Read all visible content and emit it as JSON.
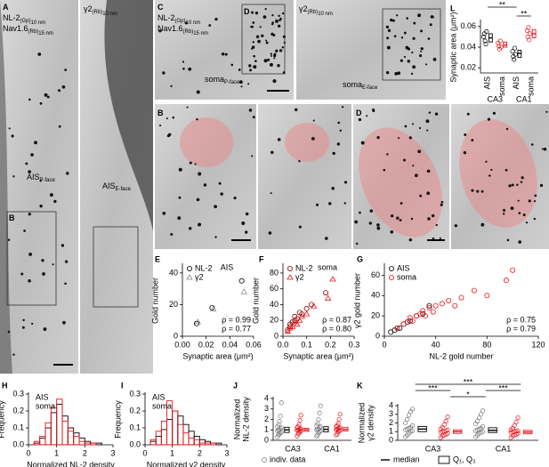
{
  "micrographs": {
    "panel_A": "A",
    "panel_B": "B",
    "panel_C": "C",
    "panel_D": "D",
    "nl2": "NL-2",
    "nl2_sub": "(Gp)",
    "nl2_size": "10 nm",
    "nav": "Nav1.6",
    "nav_sub": "(Rb)",
    "nav_size": "15 nm",
    "g2": "γ2",
    "g2_sub": "(Rb)",
    "g2_size": "10 nm",
    "ais": "AIS",
    "soma": "soma",
    "pface": "P-face",
    "eface": "E-face"
  },
  "legend": {
    "data": "indiv. data",
    "median": "median",
    "quartiles": "Q₁, Q₃"
  },
  "chart_data": [
    {
      "type": "strip",
      "panel": "L",
      "y_label": [
        "Synaptic area (μm²)"
      ],
      "ylim": [
        0.015,
        0.065
      ],
      "yticks": [
        0.02,
        0.04,
        0.06
      ],
      "groups": [
        "CA3",
        "CA1"
      ],
      "sig_labels": [
        "**",
        "**"
      ],
      "series": [
        {
          "name": "AIS",
          "color": "#000000",
          "data": [
            {
              "values": [
                0.05,
                0.053,
                0.046,
                0.043,
                0.055
              ],
              "median": 0.049,
              "q1": 0.045,
              "q3": 0.053
            },
            {
              "values": [
                0.036,
                0.031,
                0.028,
                0.039,
                0.033
              ],
              "median": 0.034,
              "q1": 0.03,
              "q3": 0.037
            }
          ]
        },
        {
          "name": "soma",
          "color": "#e8141b",
          "data": [
            {
              "values": [
                0.044,
                0.041,
                0.038,
                0.046,
                0.04
              ],
              "median": 0.042,
              "q1": 0.04,
              "q3": 0.045
            },
            {
              "values": [
                0.056,
                0.05,
                0.059,
                0.047,
                0.053
              ],
              "median": 0.053,
              "q1": 0.049,
              "q3": 0.057
            }
          ]
        }
      ]
    },
    {
      "type": "scatter",
      "panel": "E",
      "title": "AIS",
      "title_color": "#000000",
      "x_label": "Synaptic area (μm²)",
      "y_label": [
        "Gold number"
      ],
      "xlim": [
        0,
        0.06
      ],
      "xticks": [
        {
          "value": 0,
          "label": "0.00"
        },
        0.02,
        0.04,
        0.06
      ],
      "ylim": [
        0,
        45
      ],
      "yticks": [
        0,
        20,
        40
      ],
      "series": [
        {
          "name": "NL-2",
          "color": "#000000",
          "marker": "circle",
          "x": [
            0.012,
            0.025,
            0.05
          ],
          "values": [
            8,
            18,
            35
          ]
        },
        {
          "name": "γ2",
          "color": "#888888",
          "marker": "triangle",
          "x": [
            0.013,
            0.026,
            0.052
          ],
          "values": [
            9,
            17,
            28
          ]
        }
      ],
      "annotations": [
        {
          "text": "ρ = 0.99",
          "color": "#000000"
        },
        {
          "text": "ρ = 0.77",
          "color": "#888888"
        }
      ]
    },
    {
      "type": "scatter",
      "panel": "F",
      "title": "soma",
      "title_color": "#e8141b",
      "x_label": "Synaptic area (μm²)",
      "y_label": [
        "Gold number"
      ],
      "xlim": [
        0,
        0.3
      ],
      "xticks": [
        {
          "value": 0,
          "label": "0.0"
        },
        0.1,
        0.2,
        0.3
      ],
      "ylim": [
        0,
        90
      ],
      "yticks": [
        0,
        20,
        40,
        60,
        80
      ],
      "series": [
        {
          "name": "NL-2",
          "color": "#8b0000",
          "marker": "circle",
          "x": [
            0.02,
            0.03,
            0.03,
            0.04,
            0.05,
            0.05,
            0.06,
            0.07,
            0.08,
            0.1,
            0.12,
            0.18
          ],
          "values": [
            8,
            12,
            15,
            18,
            20,
            25,
            22,
            30,
            28,
            35,
            40,
            55
          ]
        },
        {
          "name": "γ2",
          "color": "#e8141b",
          "marker": "triangle",
          "x": [
            0.02,
            0.03,
            0.04,
            0.05,
            0.06,
            0.07,
            0.08,
            0.1,
            0.13,
            0.19,
            0.21
          ],
          "values": [
            6,
            10,
            12,
            18,
            15,
            20,
            25,
            28,
            38,
            48,
            72
          ]
        }
      ],
      "annotations": [
        {
          "text": "ρ = 0.87",
          "color": "#8b0000"
        },
        {
          "text": "ρ = 0.80",
          "color": "#e8141b"
        }
      ]
    },
    {
      "type": "scatter",
      "panel": "G",
      "x_label": "NL-2 gold number",
      "y_label": [
        "γ2 gold number"
      ],
      "xlim": [
        0,
        120
      ],
      "xticks": [
        0,
        40,
        80,
        120
      ],
      "ylim": [
        0,
        70
      ],
      "yticks": [
        0,
        20,
        40,
        60
      ],
      "series": [
        {
          "name": "AIS",
          "color": "#000000",
          "marker": "circle",
          "x": [
            5,
            8,
            10,
            12,
            15,
            18,
            20,
            25,
            30,
            35
          ],
          "values": [
            4,
            6,
            8,
            8,
            12,
            14,
            15,
            20,
            22,
            30
          ]
        },
        {
          "name": "soma",
          "color": "#e8141b",
          "marker": "circle",
          "x": [
            10,
            15,
            18,
            20,
            22,
            25,
            28,
            30,
            32,
            35,
            38,
            40,
            45,
            50,
            55,
            60,
            70,
            80,
            95,
            100
          ],
          "values": [
            8,
            12,
            14,
            18,
            15,
            20,
            22,
            25,
            20,
            28,
            24,
            30,
            32,
            35,
            30,
            38,
            45,
            40,
            55,
            65
          ]
        }
      ],
      "annotations": [
        {
          "text": "ρ = 0.75",
          "color": "#000000"
        },
        {
          "text": "ρ = 0.79",
          "color": "#e8141b"
        }
      ]
    },
    {
      "type": "histogram",
      "panel": "H",
      "x_label": "Normalized NL-2 density",
      "y_label": [
        "Frequency"
      ],
      "xlim": [
        0,
        3
      ],
      "xticks": [
        0,
        1,
        2,
        3
      ],
      "ylim": [
        0,
        0.3
      ],
      "yticks": [
        {
          "value": 0,
          "label": "0.0"
        },
        0.1,
        0.2,
        0.3
      ],
      "bins": [
        0,
        0.2,
        0.4,
        0.6,
        0.8,
        1,
        1.2,
        1.4,
        1.6,
        1.8,
        2,
        2.2,
        2.4,
        2.6,
        2.8,
        3
      ],
      "series": [
        {
          "name": "AIS",
          "color": "#000000",
          "values": [
            0,
            0.01,
            0.04,
            0.1,
            0.19,
            0.24,
            0.17,
            0.1,
            0.07,
            0.04,
            0.02,
            0.01,
            0.01,
            0,
            0
          ]
        },
        {
          "name": "soma",
          "color": "#e8141b",
          "values": [
            0,
            0.02,
            0.05,
            0.13,
            0.22,
            0.27,
            0.14,
            0.08,
            0.05,
            0.02,
            0.01,
            0.01,
            0,
            0,
            0
          ]
        }
      ]
    },
    {
      "type": "histogram",
      "panel": "I",
      "x_label": "Normalized γ2 density",
      "y_label": [
        "Frequency"
      ],
      "xlim": [
        0,
        3
      ],
      "xticks": [
        0,
        1,
        2,
        3
      ],
      "ylim": [
        0,
        0.3
      ],
      "yticks": [
        {
          "value": 0,
          "label": "0.0"
        },
        0.1,
        0.2,
        0.3
      ],
      "bins": [
        0,
        0.2,
        0.4,
        0.6,
        0.8,
        1,
        1.2,
        1.4,
        1.6,
        1.8,
        2,
        2.2,
        2.4,
        2.6,
        2.8,
        3
      ],
      "series": [
        {
          "name": "AIS",
          "color": "#000000",
          "values": [
            0,
            0.02,
            0.05,
            0.09,
            0.15,
            0.2,
            0.17,
            0.12,
            0.08,
            0.05,
            0.03,
            0.02,
            0.01,
            0.01,
            0
          ]
        },
        {
          "name": "soma",
          "color": "#e8141b",
          "values": [
            0,
            0.03,
            0.08,
            0.14,
            0.26,
            0.2,
            0.12,
            0.07,
            0.04,
            0.03,
            0.01,
            0.01,
            0.01,
            0,
            0
          ]
        }
      ]
    },
    {
      "type": "strip",
      "panel": "J",
      "y_label": [
        "Normalized",
        "NL-2 density"
      ],
      "ylim": [
        0,
        4
      ],
      "yticks": [
        0,
        1,
        2,
        3,
        4
      ],
      "groups": [
        "CA3",
        "CA1"
      ],
      "series": [
        {
          "color": "#777777",
          "data": [
            {
              "values": [
                0.3,
                0.5,
                0.6,
                0.7,
                0.8,
                0.9,
                1.0,
                1.0,
                1.1,
                1.2,
                1.3,
                1.5,
                1.8,
                2.3,
                3.6
              ],
              "median": 1.0,
              "q1": 0.75,
              "q3": 1.25
            },
            {
              "values": [
                0.4,
                0.5,
                0.7,
                0.8,
                0.9,
                1.0,
                1.05,
                1.1,
                1.2,
                1.3,
                1.4,
                1.6,
                2.0,
                2.6,
                3.3
              ],
              "median": 1.05,
              "q1": 0.8,
              "q3": 1.3
            }
          ]
        },
        {
          "color": "#e8141b",
          "data": [
            {
              "values": [
                0.4,
                0.6,
                0.7,
                0.8,
                0.9,
                0.95,
                1.0,
                1.0,
                1.05,
                1.1,
                1.2,
                1.3,
                1.5,
                1.9,
                2.4
              ],
              "median": 1.0,
              "q1": 0.85,
              "q3": 1.15
            },
            {
              "values": [
                0.5,
                0.6,
                0.8,
                0.9,
                0.95,
                1.0,
                1.05,
                1.1,
                1.15,
                1.2,
                1.3,
                1.4,
                1.6,
                2.0,
                2.5
              ],
              "median": 1.05,
              "q1": 0.9,
              "q3": 1.25
            }
          ]
        }
      ]
    },
    {
      "type": "strip",
      "panel": "K",
      "y_label": [
        "Normalized",
        "γ2 density"
      ],
      "ylim": [
        0,
        4
      ],
      "yticks": [
        0,
        1,
        2,
        3,
        4
      ],
      "groups": [
        "CA3",
        "CA1"
      ],
      "sig_labels": [
        "***",
        "***",
        "*",
        "***"
      ],
      "series": [
        {
          "color": "#777777",
          "data": [
            {
              "values": [
                0.4,
                0.6,
                0.8,
                1.0,
                1.1,
                1.2,
                1.3,
                1.4,
                1.5,
                1.7,
                2.0,
                2.4,
                2.9,
                3.3,
                3.6
              ],
              "median": 1.3,
              "q1": 1.0,
              "q3": 1.6
            },
            {
              "values": [
                0.4,
                0.6,
                0.8,
                0.9,
                1.0,
                1.1,
                1.2,
                1.3,
                1.4,
                1.6,
                1.9,
                2.2,
                2.6,
                3.0,
                3.4
              ],
              "median": 1.15,
              "q1": 0.9,
              "q3": 1.45
            }
          ]
        },
        {
          "color": "#e8141b",
          "data": [
            {
              "values": [
                0.3,
                0.5,
                0.6,
                0.7,
                0.8,
                0.9,
                1.0,
                1.0,
                1.1,
                1.2,
                1.3,
                1.5,
                1.8,
                2.2,
                2.7
              ],
              "median": 1.0,
              "q1": 0.8,
              "q3": 1.2
            },
            {
              "values": [
                0.3,
                0.5,
                0.6,
                0.7,
                0.8,
                0.9,
                0.95,
                1.0,
                1.05,
                1.1,
                1.2,
                1.4,
                1.7,
                2.1,
                2.6
              ],
              "median": 0.95,
              "q1": 0.75,
              "q3": 1.15
            }
          ]
        }
      ]
    }
  ]
}
